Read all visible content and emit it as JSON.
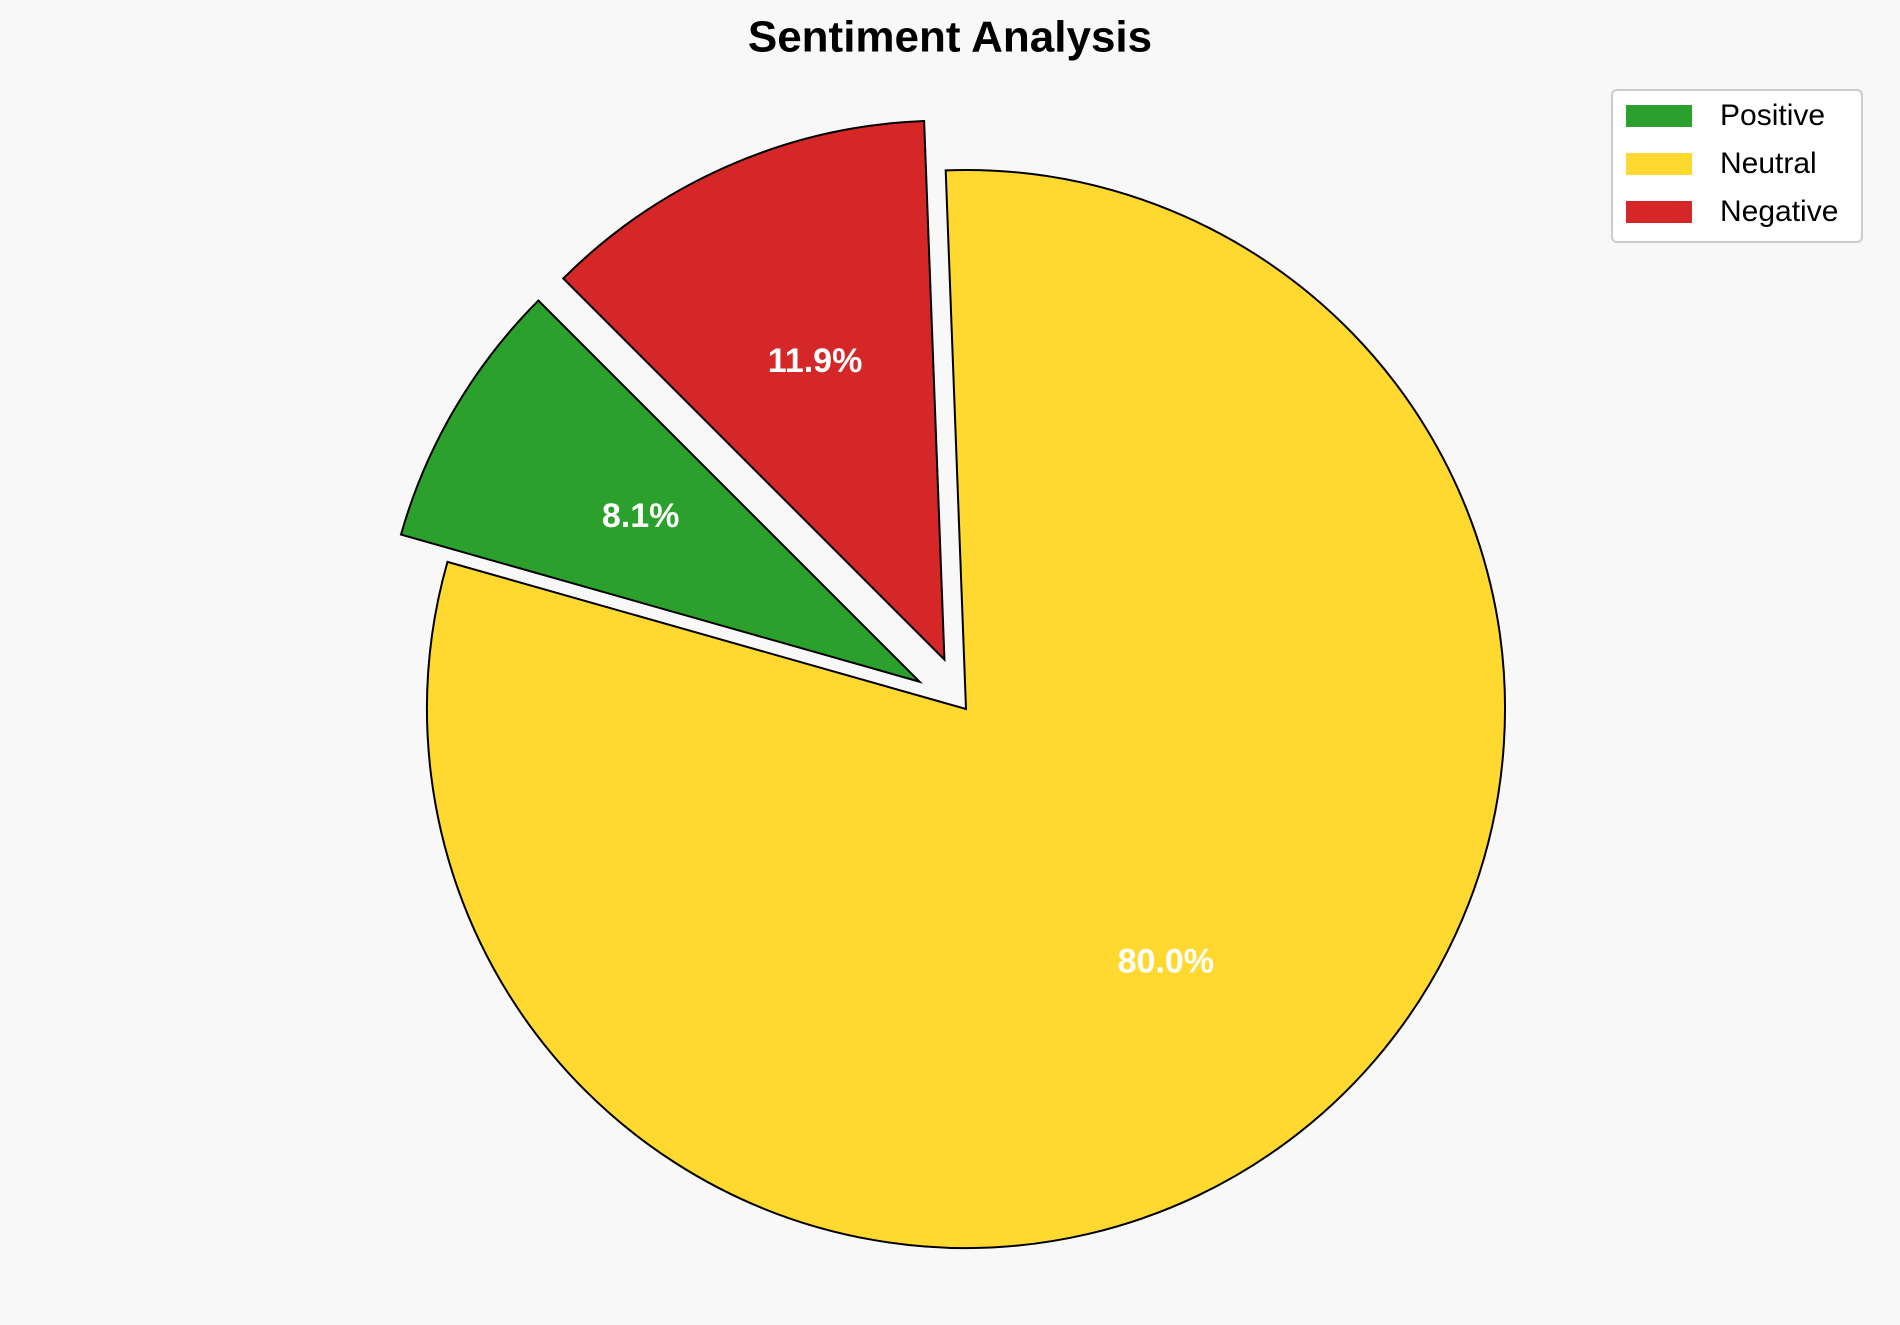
{
  "chart_data": {
    "type": "pie",
    "title": "Sentiment Analysis",
    "categories": [
      "Positive",
      "Neutral",
      "Negative"
    ],
    "values": [
      8.1,
      80.0,
      11.9
    ],
    "value_labels": [
      "8.1%",
      "80.0%",
      "11.9%"
    ],
    "colors": [
      "#2ca02c",
      "#ffd92f",
      "#d62728"
    ],
    "legend": "upper right"
  }
}
